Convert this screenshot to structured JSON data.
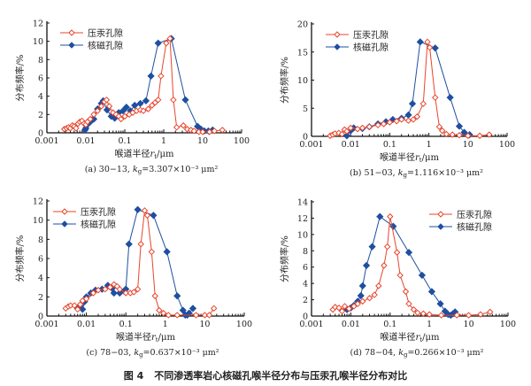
{
  "figure_caption": {
    "label": "图 4",
    "text": "不同渗透率岩心核磁孔喉半径分布与压汞孔喉半径分布对比"
  },
  "colors": {
    "mercury": "#e8452c",
    "nmr": "#1f4fa0"
  },
  "chart_data": [
    {
      "type": "scatter-line",
      "panel": "a",
      "xscale": "log",
      "xlim": [
        0.001,
        100
      ],
      "ylim": [
        0,
        12
      ],
      "xticks": [
        "0.001",
        "0.01",
        "0.1",
        "1",
        "10",
        "100"
      ],
      "yticks": [
        "0",
        "2",
        "4",
        "6",
        "8",
        "10",
        "12"
      ],
      "ylabel": "分布频率/%",
      "xlabel": {
        "main": "喉道半径",
        "var": "r",
        "sub": "t",
        "unit": "/μm"
      },
      "caption": {
        "prefix": "(a) 30−13, ",
        "k": "k",
        "sub": "g",
        "rest": "=3.307×10⁻³ μm²"
      },
      "legend": "top-left",
      "series": [
        {
          "name": "压汞孔隙",
          "marker": "open-diamond",
          "points": [
            [
              0.0028,
              0.4
            ],
            [
              0.0032,
              0.5
            ],
            [
              0.0036,
              0.6
            ],
            [
              0.004,
              0.5
            ],
            [
              0.0045,
              0.8
            ],
            [
              0.005,
              0.7
            ],
            [
              0.0056,
              0.5
            ],
            [
              0.0063,
              1.0
            ],
            [
              0.007,
              1.2
            ],
            [
              0.008,
              1.3
            ],
            [
              0.009,
              1.0
            ],
            [
              0.01,
              0.9
            ],
            [
              0.011,
              1.2
            ],
            [
              0.013,
              1.5
            ],
            [
              0.016,
              2.0
            ],
            [
              0.02,
              2.4
            ],
            [
              0.025,
              2.9
            ],
            [
              0.03,
              3.4
            ],
            [
              0.034,
              3.6
            ],
            [
              0.04,
              2.9
            ],
            [
              0.05,
              2.2
            ],
            [
              0.06,
              2.0
            ],
            [
              0.07,
              1.8
            ],
            [
              0.08,
              1.5
            ],
            [
              0.1,
              1.8
            ],
            [
              0.13,
              2.0
            ],
            [
              0.16,
              2.2
            ],
            [
              0.2,
              2.4
            ],
            [
              0.25,
              2.5
            ],
            [
              0.3,
              2.4
            ],
            [
              0.4,
              2.6
            ],
            [
              0.5,
              3.0
            ],
            [
              0.6,
              3.3
            ],
            [
              0.72,
              3.6
            ],
            [
              0.85,
              6.2
            ],
            [
              1.16,
              9.8
            ],
            [
              1.45,
              10.3
            ],
            [
              1.77,
              3.6
            ],
            [
              2.15,
              0.6
            ],
            [
              3.2,
              0.8
            ],
            [
              4,
              0.4
            ],
            [
              5,
              0.3
            ],
            [
              6,
              0.2
            ],
            [
              8,
              0.1
            ],
            [
              10,
              0.1
            ],
            [
              15,
              0.1
            ],
            [
              20,
              0.2
            ],
            [
              32,
              0.3
            ]
          ]
        },
        {
          "name": "核磁孔隙",
          "marker": "filled-diamond",
          "points": [
            [
              0.0095,
              0.3
            ],
            [
              0.01,
              0.5
            ],
            [
              0.011,
              0.9
            ],
            [
              0.013,
              1.2
            ],
            [
              0.016,
              1.5
            ],
            [
              0.02,
              2.6
            ],
            [
              0.025,
              3.2
            ],
            [
              0.028,
              3.5
            ],
            [
              0.035,
              2.5
            ],
            [
              0.045,
              1.8
            ],
            [
              0.055,
              1.6
            ],
            [
              0.07,
              2.2
            ],
            [
              0.09,
              2.4
            ],
            [
              0.11,
              2.8
            ],
            [
              0.14,
              2.4
            ],
            [
              0.18,
              3.0
            ],
            [
              0.25,
              3.2
            ],
            [
              0.35,
              3.5
            ],
            [
              0.47,
              6.2
            ],
            [
              0.72,
              9.8
            ],
            [
              1.57,
              10.3
            ],
            [
              3.6,
              3.6
            ],
            [
              7.4,
              0.7
            ],
            [
              9,
              0.4
            ],
            [
              11,
              0.2
            ],
            [
              14,
              0.2
            ],
            [
              18,
              0.3
            ]
          ]
        }
      ]
    },
    {
      "type": "scatter-line",
      "panel": "b",
      "xscale": "log",
      "xlim": [
        0.001,
        100
      ],
      "ylim": [
        0,
        20
      ],
      "xticks": [
        "0.001",
        "0.01",
        "0.1",
        "1",
        "10",
        "100"
      ],
      "yticks": [
        "0",
        "5",
        "10",
        "15",
        "20"
      ],
      "ylabel": "分布频率/%",
      "xlabel": {
        "main": "喉道半径",
        "var": "r",
        "sub": "t",
        "unit": "/μm"
      },
      "caption": {
        "prefix": "(b) 51−03, ",
        "k": "k",
        "sub": "g",
        "rest": "=1.116×10⁻³ μm²"
      },
      "legend": "top-left",
      "series": [
        {
          "name": "压汞孔隙",
          "marker": "open-diamond",
          "points": [
            [
              0.003,
              0.1
            ],
            [
              0.0035,
              0.3
            ],
            [
              0.004,
              0.5
            ],
            [
              0.005,
              0.6
            ],
            [
              0.006,
              0.4
            ],
            [
              0.007,
              1.2
            ],
            [
              0.008,
              0.9
            ],
            [
              0.01,
              1.5
            ],
            [
              0.015,
              1.3
            ],
            [
              0.02,
              1.5
            ],
            [
              0.03,
              1.7
            ],
            [
              0.05,
              2.0
            ],
            [
              0.07,
              2.2
            ],
            [
              0.1,
              2.5
            ],
            [
              0.15,
              2.7
            ],
            [
              0.2,
              3.0
            ],
            [
              0.3,
              2.8
            ],
            [
              0.4,
              3.0
            ],
            [
              0.5,
              3.5
            ],
            [
              0.72,
              5.8
            ],
            [
              0.92,
              16.8
            ],
            [
              1.05,
              15.8
            ],
            [
              1.45,
              6.9
            ],
            [
              1.85,
              1.7
            ],
            [
              2.2,
              1.0
            ],
            [
              2.8,
              0.4
            ],
            [
              4,
              0.3
            ],
            [
              6,
              0.2
            ],
            [
              10,
              0.1
            ],
            [
              20,
              0.1
            ],
            [
              35,
              0.3
            ]
          ]
        },
        {
          "name": "核磁孔隙",
          "marker": "filled-diamond",
          "points": [
            [
              0.008,
              0.1
            ],
            [
              0.01,
              1.0
            ],
            [
              0.012,
              1.5
            ],
            [
              0.02,
              1.4
            ],
            [
              0.03,
              1.7
            ],
            [
              0.05,
              2.2
            ],
            [
              0.08,
              2.6
            ],
            [
              0.12,
              3.0
            ],
            [
              0.2,
              3.2
            ],
            [
              0.3,
              3.8
            ],
            [
              0.38,
              5.8
            ],
            [
              0.6,
              16.8
            ],
            [
              1.45,
              15.7
            ],
            [
              3.5,
              6.9
            ],
            [
              6,
              1.8
            ],
            [
              8,
              0.7
            ],
            [
              11,
              0.3
            ]
          ]
        }
      ]
    },
    {
      "type": "scatter-line",
      "panel": "c",
      "xscale": "log",
      "xlim": [
        0.001,
        100
      ],
      "ylim": [
        0,
        12
      ],
      "xticks": [
        "0.001",
        "0.01",
        "0.1",
        "1",
        "10",
        "100"
      ],
      "yticks": [
        "0",
        "2",
        "4",
        "6",
        "8",
        "10",
        "12"
      ],
      "ylabel": "分布频率/%",
      "xlabel": {
        "main": "喉道半径",
        "var": "r",
        "sub": "t",
        "unit": "/μm"
      },
      "caption": {
        "prefix": "(c) 78−03, ",
        "k": "k",
        "sub": "g",
        "rest": "=0.637×10⁻³ μm²"
      },
      "legend": "top-left",
      "series": [
        {
          "name": "压汞孔隙",
          "marker": "open-diamond",
          "points": [
            [
              0.003,
              0.8
            ],
            [
              0.0035,
              1.0
            ],
            [
              0.004,
              1.1
            ],
            [
              0.005,
              1.1
            ],
            [
              0.006,
              0.7
            ],
            [
              0.007,
              1.2
            ],
            [
              0.008,
              1.6
            ],
            [
              0.01,
              1.8
            ],
            [
              0.015,
              2.4
            ],
            [
              0.02,
              2.7
            ],
            [
              0.03,
              2.8
            ],
            [
              0.04,
              3.0
            ],
            [
              0.05,
              3.3
            ],
            [
              0.06,
              3.1
            ],
            [
              0.07,
              2.8
            ],
            [
              0.1,
              2.4
            ],
            [
              0.13,
              2.4
            ],
            [
              0.16,
              2.5
            ],
            [
              0.2,
              2.8
            ],
            [
              0.24,
              7.5
            ],
            [
              0.3,
              11.0
            ],
            [
              0.35,
              10.5
            ],
            [
              0.45,
              6.7
            ],
            [
              0.55,
              2.1
            ],
            [
              0.7,
              0.6
            ],
            [
              0.9,
              0.3
            ],
            [
              1.2,
              0.1
            ],
            [
              2,
              0.1
            ],
            [
              6,
              0.1
            ],
            [
              10,
              0.1
            ],
            [
              13,
              0.1
            ],
            [
              17,
              0.8
            ]
          ]
        },
        {
          "name": "核磁孔隙",
          "marker": "filled-diamond",
          "points": [
            [
              0.006,
              0.8
            ],
            [
              0.007,
              1.1
            ],
            [
              0.008,
              0.7
            ],
            [
              0.009,
              1.5
            ],
            [
              0.01,
              2.0
            ],
            [
              0.013,
              2.4
            ],
            [
              0.017,
              2.7
            ],
            [
              0.025,
              2.8
            ],
            [
              0.035,
              3.2
            ],
            [
              0.045,
              2.9
            ],
            [
              0.05,
              2.4
            ],
            [
              0.07,
              2.4
            ],
            [
              0.09,
              2.6
            ],
            [
              0.1,
              2.8
            ],
            [
              0.12,
              7.5
            ],
            [
              0.2,
              11.1
            ],
            [
              0.5,
              10.5
            ],
            [
              1.1,
              6.7
            ],
            [
              2.0,
              2.1
            ],
            [
              2.8,
              0.6
            ],
            [
              3.2,
              0.1
            ],
            [
              3.6,
              0.1
            ],
            [
              4,
              0.3
            ],
            [
              5,
              0.8
            ]
          ]
        }
      ]
    },
    {
      "type": "scatter-line",
      "panel": "d",
      "xscale": "log",
      "xlim": [
        0.001,
        100
      ],
      "ylim": [
        0,
        14
      ],
      "xticks": [
        "0.001",
        "0.01",
        "0.1",
        "1",
        "10",
        "100"
      ],
      "yticks": [
        "0",
        "2",
        "4",
        "6",
        "8",
        "10",
        "12",
        "14"
      ],
      "ylabel": "分布频率/%",
      "xlabel": {
        "main": "喉道半径",
        "var": "r",
        "sub": "t",
        "unit": "/μm"
      },
      "caption": {
        "prefix": "(d) 78−04, ",
        "k": "k",
        "sub": "g",
        "rest": "=0.266×10⁻³ μm²"
      },
      "legend": "top-right",
      "series": [
        {
          "name": "压汞孔隙",
          "marker": "open-diamond",
          "points": [
            [
              0.0035,
              0.8
            ],
            [
              0.004,
              1.1
            ],
            [
              0.005,
              1.0
            ],
            [
              0.006,
              0.6
            ],
            [
              0.007,
              1.2
            ],
            [
              0.009,
              0.9
            ],
            [
              0.012,
              1.2
            ],
            [
              0.015,
              1.5
            ],
            [
              0.02,
              1.8
            ],
            [
              0.03,
              2.2
            ],
            [
              0.04,
              2.6
            ],
            [
              0.051,
              3.7
            ],
            [
              0.07,
              6.2
            ],
            [
              0.085,
              8.5
            ],
            [
              0.1,
              12.2
            ],
            [
              0.15,
              7.8
            ],
            [
              0.18,
              5.0
            ],
            [
              0.25,
              3.0
            ],
            [
              0.3,
              1.5
            ],
            [
              0.4,
              0.8
            ],
            [
              0.5,
              0.4
            ],
            [
              0.7,
              0.3
            ],
            [
              1,
              0.2
            ],
            [
              2,
              0.1
            ],
            [
              5,
              0.1
            ],
            [
              10,
              0.1
            ],
            [
              20,
              0.2
            ],
            [
              35,
              0.5
            ]
          ]
        },
        {
          "name": "核磁孔隙",
          "marker": "filled-diamond",
          "points": [
            [
              0.008,
              0.8
            ],
            [
              0.01,
              1.0
            ],
            [
              0.012,
              1.3
            ],
            [
              0.015,
              1.8
            ],
            [
              0.018,
              2.5
            ],
            [
              0.02,
              3.7
            ],
            [
              0.025,
              6.2
            ],
            [
              0.035,
              8.5
            ],
            [
              0.055,
              12.2
            ],
            [
              0.12,
              11.0
            ],
            [
              0.3,
              7.8
            ],
            [
              0.65,
              5.0
            ],
            [
              1.15,
              3.0
            ],
            [
              1.9,
              1.5
            ],
            [
              2.5,
              0.6
            ],
            [
              3,
              0.2
            ],
            [
              3.5,
              0.1
            ],
            [
              4,
              0.3
            ],
            [
              4.5,
              0.5
            ]
          ]
        }
      ]
    }
  ]
}
